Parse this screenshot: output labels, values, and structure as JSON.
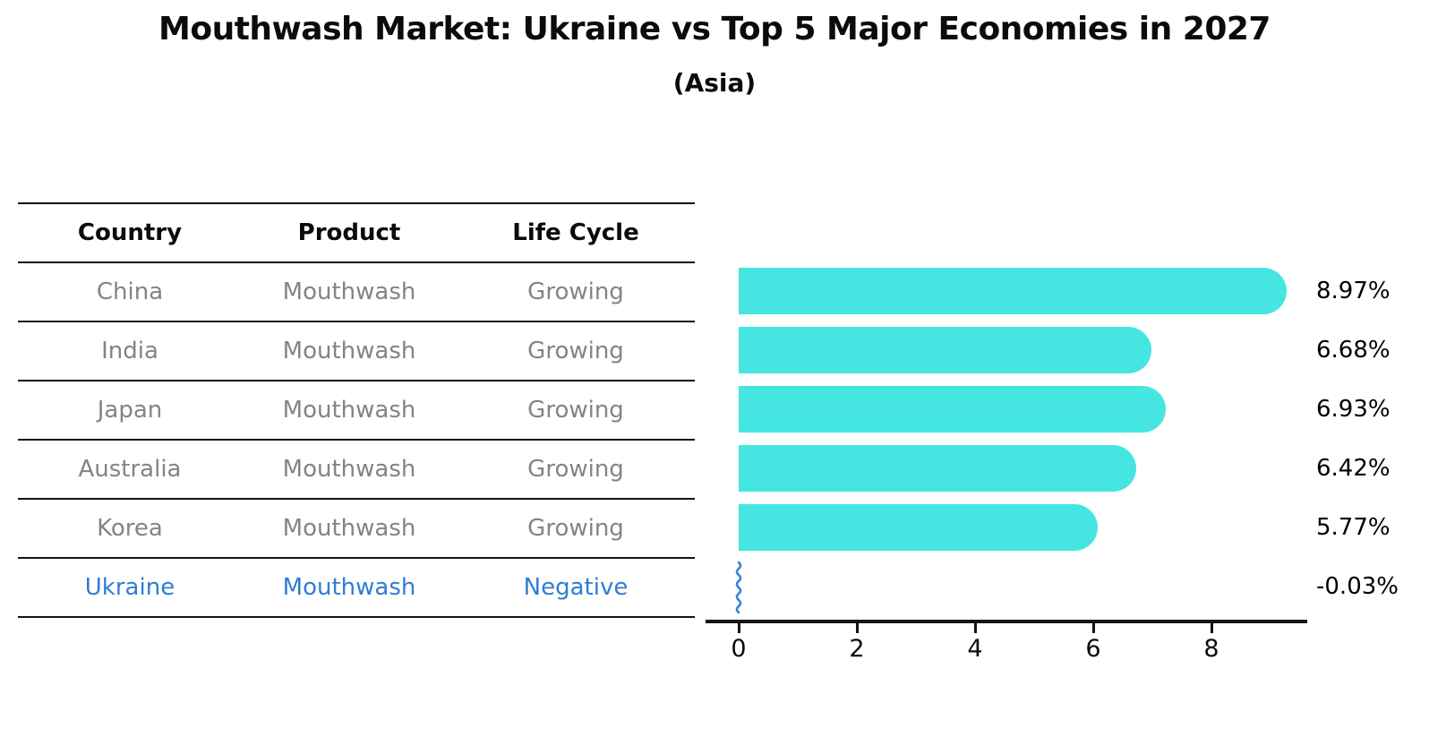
{
  "page": {
    "title": "Mouthwash Market: Ukraine vs Top 5 Major Economies in 2027",
    "subtitle": "(Asia)"
  },
  "table": {
    "headers": [
      "Country",
      "Product",
      "Life Cycle"
    ],
    "rows": [
      {
        "country": "China",
        "product": "Mouthwash",
        "life_cycle": "Growing",
        "highlighted": false
      },
      {
        "country": "India",
        "product": "Mouthwash",
        "life_cycle": "Growing",
        "highlighted": false
      },
      {
        "country": "Japan",
        "product": "Mouthwash",
        "life_cycle": "Growing",
        "highlighted": false
      },
      {
        "country": "Australia",
        "product": "Mouthwash",
        "life_cycle": "Growing",
        "highlighted": false
      },
      {
        "country": "Korea",
        "product": "Mouthwash",
        "life_cycle": "Growing",
        "highlighted": false
      },
      {
        "country": "Ukraine",
        "product": "Mouthwash",
        "life_cycle": "Negative",
        "highlighted": true
      }
    ]
  },
  "chart_data": {
    "type": "bar",
    "orientation": "horizontal",
    "title": "Mouthwash Market: Ukraine vs Top 5 Major Economies in 2027",
    "subtitle": "(Asia)",
    "categories": [
      "China",
      "India",
      "Japan",
      "Australia",
      "Korea",
      "Ukraine"
    ],
    "values": [
      8.97,
      6.68,
      6.93,
      6.42,
      5.77,
      -0.03
    ],
    "value_labels": [
      "8.97%",
      "6.68%",
      "6.93%",
      "6.42%",
      "5.77%",
      "-0.03%"
    ],
    "xlim": [
      0,
      9.6
    ],
    "xticks": [
      0,
      2,
      4,
      6,
      8
    ],
    "grid": false,
    "legend_position": "none",
    "bar_color": "#45E6E2",
    "negative_marker_color": "#3E82D8",
    "highlight_text_color": "#2F7DD4",
    "row_text_color": "#848484"
  }
}
